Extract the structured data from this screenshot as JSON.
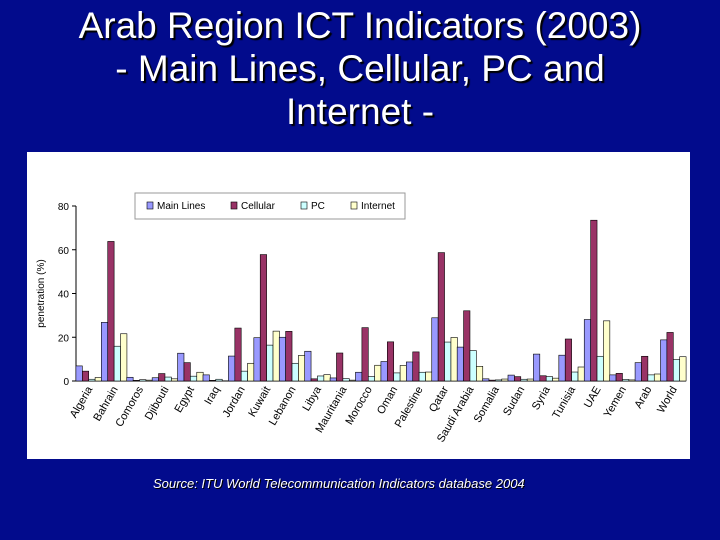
{
  "slide": {
    "title_lines": [
      "Arab Region ICT Indicators (2003)",
      "- Main Lines, Cellular, PC and",
      "Internet -"
    ],
    "source": "Source: ITU World Telecommunication Indicators database 2004"
  },
  "chart_data": {
    "type": "bar",
    "title": "",
    "xlabel": "",
    "ylabel": "penetration (%)",
    "ylim": [
      0,
      80
    ],
    "yticks": [
      0,
      20,
      40,
      60,
      80
    ],
    "grid": false,
    "legend_position": "top",
    "categories": [
      "Algeria",
      "Bahrain",
      "Comoros",
      "Djibouti",
      "Egypt",
      "Iraq",
      "Jordan",
      "Kuwait",
      "Lebanon",
      "Libya",
      "Mauritania",
      "Morocco",
      "Oman",
      "Palestine",
      "Qatar",
      "Saudi Arabia",
      "Somalia",
      "Sudan",
      "Syria",
      "Tunisia",
      "UAE",
      "Yemen",
      "Arab",
      "World"
    ],
    "series": [
      {
        "name": "Main Lines",
        "color": "#9999ff",
        "values": [
          6.9,
          26.8,
          1.7,
          1.5,
          12.7,
          2.8,
          11.4,
          19.8,
          20.0,
          13.6,
          1.4,
          4.0,
          8.9,
          8.7,
          28.9,
          15.5,
          1.0,
          2.7,
          12.3,
          11.8,
          28.1,
          2.8,
          8.4,
          18.8
        ]
      },
      {
        "name": "Cellular",
        "color": "#993366",
        "values": [
          4.5,
          63.8,
          0.3,
          3.4,
          8.4,
          0.3,
          24.2,
          57.8,
          22.7,
          1.0,
          12.8,
          24.4,
          17.9,
          13.3,
          58.7,
          32.1,
          0.4,
          2.0,
          2.4,
          19.2,
          73.5,
          3.5,
          11.3,
          22.2
        ]
      },
      {
        "name": "PC",
        "color": "#ccffff",
        "values": [
          0.8,
          15.9,
          0.6,
          1.8,
          2.2,
          0.8,
          4.5,
          16.4,
          8.1,
          2.3,
          1.1,
          2.0,
          3.7,
          4.0,
          17.8,
          13.9,
          0.5,
          0.8,
          2.0,
          4.1,
          11.3,
          0.7,
          2.8,
          9.8
        ]
      },
      {
        "name": "Internet",
        "color": "#ffffcc",
        "values": [
          1.6,
          21.6,
          0.4,
          1.0,
          4.0,
          0.1,
          8.1,
          22.8,
          11.7,
          2.9,
          0.4,
          7.2,
          7.1,
          4.1,
          19.9,
          6.7,
          0.9,
          0.9,
          1.3,
          6.4,
          27.5,
          0.5,
          3.2,
          11.1
        ]
      }
    ]
  }
}
